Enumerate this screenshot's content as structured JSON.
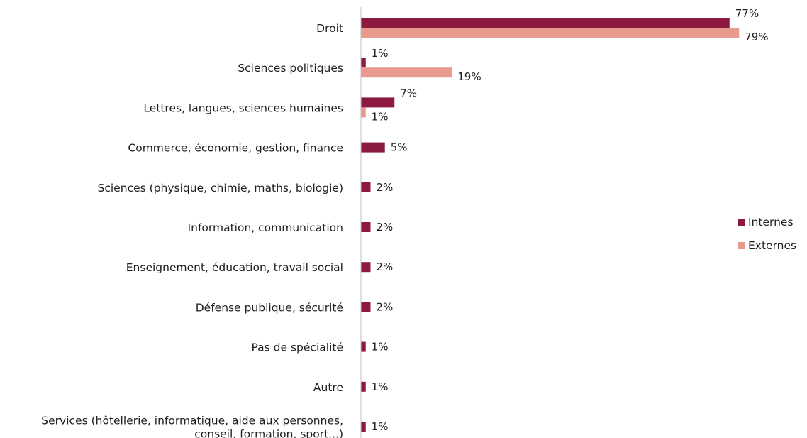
{
  "chart_data": {
    "type": "bar",
    "orientation": "horizontal",
    "categories": [
      [
        "Droit"
      ],
      [
        "Sciences politiques"
      ],
      [
        "Lettres, langues, sciences humaines"
      ],
      [
        "Commerce, économie, gestion, finance"
      ],
      [
        "Sciences (physique, chimie, maths, biologie)"
      ],
      [
        "Information, communication"
      ],
      [
        "Enseignement, éducation, travail social"
      ],
      [
        "Défense publique, sécurité"
      ],
      [
        "Pas de spécialité"
      ],
      [
        "Autre"
      ],
      [
        "Services (hôtellerie, informatique, aide aux personnes,",
        "conseil, formation, sport...)"
      ]
    ],
    "series": [
      {
        "name": "Internes",
        "color": "#8b1a3e",
        "values": [
          77,
          1,
          7,
          5,
          2,
          2,
          2,
          2,
          1,
          1,
          1
        ],
        "labels": [
          "77%",
          "1%",
          "7%",
          "5%",
          "2%",
          "2%",
          "2%",
          "2%",
          "1%",
          "1%",
          "1%"
        ]
      },
      {
        "name": "Externes",
        "color": "#e99a8e",
        "values": [
          79,
          19,
          1,
          null,
          null,
          null,
          null,
          null,
          null,
          null,
          null
        ],
        "labels": [
          "79%",
          "19%",
          "1%",
          null,
          null,
          null,
          null,
          null,
          null,
          null,
          null
        ]
      }
    ],
    "legend_position": "right",
    "axis_color": "#bfbfbf",
    "xlim": [
      0,
      100
    ]
  }
}
